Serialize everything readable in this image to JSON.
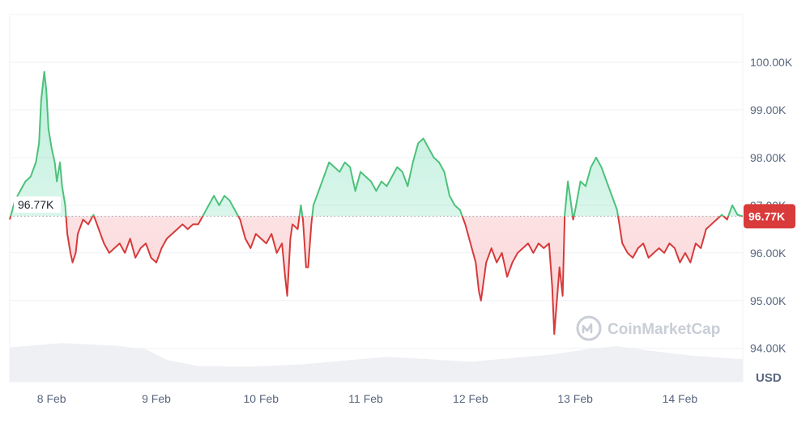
{
  "chart_data": {
    "type": "area",
    "ylim": [
      93300,
      101000
    ],
    "y_ticks": [
      {
        "value": 94000,
        "label": "94.00K"
      },
      {
        "value": 95000,
        "label": "95.00K"
      },
      {
        "value": 96000,
        "label": "96.00K"
      },
      {
        "value": 97000,
        "label": "97.00K"
      },
      {
        "value": 98000,
        "label": "98.00K"
      },
      {
        "value": 99000,
        "label": "99.00K"
      },
      {
        "value": 100000,
        "label": "100.00K"
      }
    ],
    "x_ticks": [
      {
        "value": 0.4,
        "label": "8 Feb"
      },
      {
        "value": 1.4,
        "label": "9 Feb"
      },
      {
        "value": 2.4,
        "label": "10 Feb"
      },
      {
        "value": 3.4,
        "label": "11 Feb"
      },
      {
        "value": 4.4,
        "label": "12 Feb"
      },
      {
        "value": 5.4,
        "label": "13 Feb"
      },
      {
        "value": 6.4,
        "label": "14 Feb"
      }
    ],
    "x_range": [
      0,
      7
    ],
    "unit_label": "USD",
    "reference": {
      "value": 96770,
      "label": "96.77K"
    },
    "current": {
      "value": 96770,
      "label": "96.77K"
    },
    "colors": {
      "up": "#16c784",
      "down": "#ea3943",
      "up_line": "#4cc17a",
      "down_line": "#d63a3a",
      "tag": "#d93a3a",
      "volume": "#eef0f3",
      "grid": "#eff2f5"
    },
    "price": [
      [
        0.0,
        96700
      ],
      [
        0.05,
        97100
      ],
      [
        0.1,
        97300
      ],
      [
        0.15,
        97500
      ],
      [
        0.2,
        97600
      ],
      [
        0.25,
        97900
      ],
      [
        0.28,
        98300
      ],
      [
        0.3,
        99200
      ],
      [
        0.33,
        99800
      ],
      [
        0.35,
        99400
      ],
      [
        0.37,
        98600
      ],
      [
        0.4,
        98200
      ],
      [
        0.43,
        97900
      ],
      [
        0.45,
        97500
      ],
      [
        0.48,
        97900
      ],
      [
        0.5,
        97400
      ],
      [
        0.53,
        97000
      ],
      [
        0.55,
        96400
      ],
      [
        0.58,
        96000
      ],
      [
        0.6,
        95800
      ],
      [
        0.63,
        96000
      ],
      [
        0.65,
        96400
      ],
      [
        0.7,
        96700
      ],
      [
        0.75,
        96600
      ],
      [
        0.8,
        96800
      ],
      [
        0.85,
        96500
      ],
      [
        0.9,
        96200
      ],
      [
        0.95,
        96000
      ],
      [
        1.0,
        96100
      ],
      [
        1.05,
        96200
      ],
      [
        1.1,
        96000
      ],
      [
        1.15,
        96300
      ],
      [
        1.2,
        95900
      ],
      [
        1.25,
        96100
      ],
      [
        1.3,
        96200
      ],
      [
        1.35,
        95900
      ],
      [
        1.4,
        95800
      ],
      [
        1.45,
        96100
      ],
      [
        1.5,
        96300
      ],
      [
        1.55,
        96400
      ],
      [
        1.6,
        96500
      ],
      [
        1.65,
        96600
      ],
      [
        1.7,
        96500
      ],
      [
        1.75,
        96600
      ],
      [
        1.8,
        96600
      ],
      [
        1.85,
        96800
      ],
      [
        1.9,
        97000
      ],
      [
        1.95,
        97200
      ],
      [
        2.0,
        97000
      ],
      [
        2.05,
        97200
      ],
      [
        2.1,
        97100
      ],
      [
        2.15,
        96900
      ],
      [
        2.2,
        96700
      ],
      [
        2.25,
        96300
      ],
      [
        2.3,
        96100
      ],
      [
        2.35,
        96400
      ],
      [
        2.4,
        96300
      ],
      [
        2.45,
        96200
      ],
      [
        2.5,
        96400
      ],
      [
        2.55,
        96000
      ],
      [
        2.6,
        96200
      ],
      [
        2.63,
        95500
      ],
      [
        2.65,
        95100
      ],
      [
        2.68,
        96300
      ],
      [
        2.7,
        96600
      ],
      [
        2.75,
        96500
      ],
      [
        2.78,
        97000
      ],
      [
        2.8,
        96700
      ],
      [
        2.83,
        95700
      ],
      [
        2.85,
        95700
      ],
      [
        2.88,
        96600
      ],
      [
        2.9,
        97000
      ],
      [
        2.95,
        97300
      ],
      [
        3.0,
        97600
      ],
      [
        3.05,
        97900
      ],
      [
        3.1,
        97800
      ],
      [
        3.15,
        97700
      ],
      [
        3.2,
        97900
      ],
      [
        3.25,
        97800
      ],
      [
        3.3,
        97300
      ],
      [
        3.35,
        97700
      ],
      [
        3.4,
        97600
      ],
      [
        3.45,
        97500
      ],
      [
        3.5,
        97300
      ],
      [
        3.55,
        97500
      ],
      [
        3.6,
        97400
      ],
      [
        3.65,
        97600
      ],
      [
        3.7,
        97800
      ],
      [
        3.75,
        97700
      ],
      [
        3.8,
        97400
      ],
      [
        3.85,
        97900
      ],
      [
        3.9,
        98300
      ],
      [
        3.95,
        98400
      ],
      [
        4.0,
        98200
      ],
      [
        4.05,
        98000
      ],
      [
        4.1,
        97900
      ],
      [
        4.15,
        97700
      ],
      [
        4.2,
        97200
      ],
      [
        4.25,
        97000
      ],
      [
        4.3,
        96900
      ],
      [
        4.35,
        96600
      ],
      [
        4.4,
        96200
      ],
      [
        4.45,
        95800
      ],
      [
        4.48,
        95200
      ],
      [
        4.5,
        95000
      ],
      [
        4.55,
        95800
      ],
      [
        4.6,
        96100
      ],
      [
        4.65,
        95800
      ],
      [
        4.7,
        96000
      ],
      [
        4.75,
        95500
      ],
      [
        4.8,
        95800
      ],
      [
        4.85,
        96000
      ],
      [
        4.9,
        96100
      ],
      [
        4.95,
        96200
      ],
      [
        5.0,
        96000
      ],
      [
        5.05,
        96200
      ],
      [
        5.1,
        96100
      ],
      [
        5.15,
        96200
      ],
      [
        5.18,
        95300
      ],
      [
        5.2,
        94300
      ],
      [
        5.25,
        95700
      ],
      [
        5.28,
        95100
      ],
      [
        5.3,
        96800
      ],
      [
        5.33,
        97500
      ],
      [
        5.35,
        97200
      ],
      [
        5.38,
        96700
      ],
      [
        5.4,
        96900
      ],
      [
        5.45,
        97500
      ],
      [
        5.5,
        97400
      ],
      [
        5.55,
        97800
      ],
      [
        5.6,
        98000
      ],
      [
        5.65,
        97800
      ],
      [
        5.7,
        97500
      ],
      [
        5.75,
        97200
      ],
      [
        5.8,
        96900
      ],
      [
        5.85,
        96200
      ],
      [
        5.9,
        96000
      ],
      [
        5.95,
        95900
      ],
      [
        6.0,
        96100
      ],
      [
        6.05,
        96200
      ],
      [
        6.1,
        95900
      ],
      [
        6.15,
        96000
      ],
      [
        6.2,
        96100
      ],
      [
        6.25,
        96000
      ],
      [
        6.3,
        96200
      ],
      [
        6.35,
        96100
      ],
      [
        6.4,
        95800
      ],
      [
        6.45,
        96000
      ],
      [
        6.5,
        95800
      ],
      [
        6.55,
        96200
      ],
      [
        6.6,
        96100
      ],
      [
        6.65,
        96500
      ],
      [
        6.7,
        96600
      ],
      [
        6.75,
        96700
      ],
      [
        6.8,
        96800
      ],
      [
        6.85,
        96700
      ],
      [
        6.9,
        97000
      ],
      [
        6.95,
        96800
      ],
      [
        7.0,
        96770
      ]
    ],
    "volume": [
      [
        0.0,
        0.55
      ],
      [
        0.5,
        0.62
      ],
      [
        1.0,
        0.58
      ],
      [
        1.3,
        0.52
      ],
      [
        1.5,
        0.35
      ],
      [
        1.8,
        0.25
      ],
      [
        2.3,
        0.24
      ],
      [
        2.8,
        0.28
      ],
      [
        3.2,
        0.34
      ],
      [
        3.6,
        0.4
      ],
      [
        4.0,
        0.36
      ],
      [
        4.4,
        0.32
      ],
      [
        4.8,
        0.38
      ],
      [
        5.2,
        0.44
      ],
      [
        5.5,
        0.52
      ],
      [
        5.8,
        0.57
      ],
      [
        6.1,
        0.5
      ],
      [
        6.5,
        0.42
      ],
      [
        7.0,
        0.36
      ]
    ]
  },
  "watermark": {
    "text": "CoinMarketCap"
  }
}
